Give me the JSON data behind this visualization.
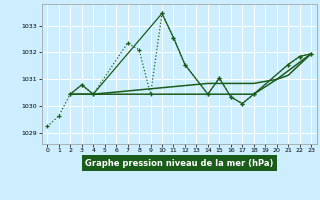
{
  "xlabel": "Graphe pression niveau de la mer (hPa)",
  "background_color": "#cceeff",
  "line_color": "#1a5c1a",
  "label_bg": "#1a5c1a",
  "label_fg": "#ffffff",
  "ylim": [
    1028.6,
    1033.8
  ],
  "xlim": [
    -0.5,
    23.5
  ],
  "yticks": [
    1029,
    1030,
    1031,
    1032,
    1033
  ],
  "xticks": [
    0,
    1,
    2,
    3,
    4,
    5,
    6,
    7,
    8,
    9,
    10,
    11,
    12,
    13,
    14,
    15,
    16,
    17,
    18,
    19,
    20,
    21,
    22,
    23
  ],
  "series1_x": [
    0,
    1,
    2,
    3,
    4,
    7,
    8,
    9,
    10,
    11,
    12,
    14,
    15,
    16,
    17,
    18,
    21,
    22,
    23
  ],
  "series1_y": [
    1029.25,
    1029.65,
    1030.45,
    1030.8,
    1030.45,
    1032.35,
    1032.1,
    1030.45,
    1033.45,
    1032.55,
    1031.55,
    1030.45,
    1031.05,
    1030.35,
    1030.1,
    1030.45,
    1031.55,
    1031.85,
    1031.95
  ],
  "series2_x": [
    2,
    3,
    4,
    10,
    11,
    12,
    14,
    15,
    16,
    17,
    18,
    21,
    22,
    23
  ],
  "series2_y": [
    1030.45,
    1030.8,
    1030.45,
    1033.45,
    1032.55,
    1031.55,
    1030.45,
    1031.05,
    1030.35,
    1030.1,
    1030.45,
    1031.55,
    1031.85,
    1031.95
  ],
  "series3_x": [
    2,
    4,
    14,
    18,
    20,
    23
  ],
  "series3_y": [
    1030.45,
    1030.45,
    1030.45,
    1030.45,
    1031.0,
    1031.95
  ],
  "series4_x": [
    2,
    4,
    14,
    17,
    18,
    20,
    21,
    22,
    23
  ],
  "series4_y": [
    1030.45,
    1030.45,
    1030.85,
    1030.85,
    1030.85,
    1031.0,
    1031.15,
    1031.55,
    1031.95
  ]
}
